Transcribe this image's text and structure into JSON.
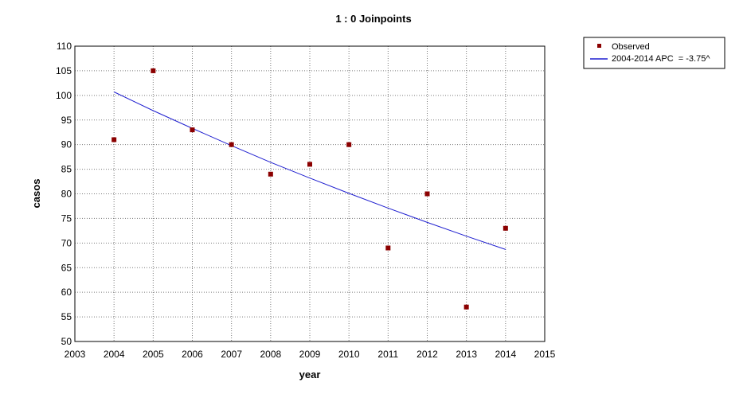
{
  "chart_data": {
    "type": "scatter",
    "title": "1 : 0 Joinpoints",
    "xlabel": "year",
    "ylabel": "casos",
    "xlim": [
      2003,
      2015
    ],
    "ylim": [
      50,
      110
    ],
    "x_ticks": [
      2003,
      2004,
      2005,
      2006,
      2007,
      2008,
      2009,
      2010,
      2011,
      2012,
      2013,
      2014,
      2015
    ],
    "y_ticks": [
      50,
      55,
      60,
      65,
      70,
      75,
      80,
      85,
      90,
      95,
      100,
      105,
      110
    ],
    "grid": true,
    "legend_position": "top-right outside plot",
    "series": [
      {
        "name": "Observed",
        "kind": "markers",
        "marker": "square",
        "color": "#8b0000",
        "x": [
          2004,
          2005,
          2006,
          2007,
          2008,
          2009,
          2010,
          2011,
          2012,
          2013,
          2014
        ],
        "y": [
          91,
          105,
          93,
          90,
          84,
          86,
          90,
          69,
          80,
          57,
          73
        ]
      },
      {
        "name": "2004-2014 APC  = -3.75^",
        "kind": "line",
        "color": "#1f1fd0",
        "x": [
          2004,
          2005,
          2006,
          2007,
          2008,
          2009,
          2010,
          2011,
          2012,
          2013,
          2014
        ],
        "y": [
          100.7,
          96.9,
          93.3,
          89.8,
          86.4,
          83.2,
          80.1,
          77.1,
          74.2,
          71.4,
          68.7
        ]
      }
    ]
  }
}
